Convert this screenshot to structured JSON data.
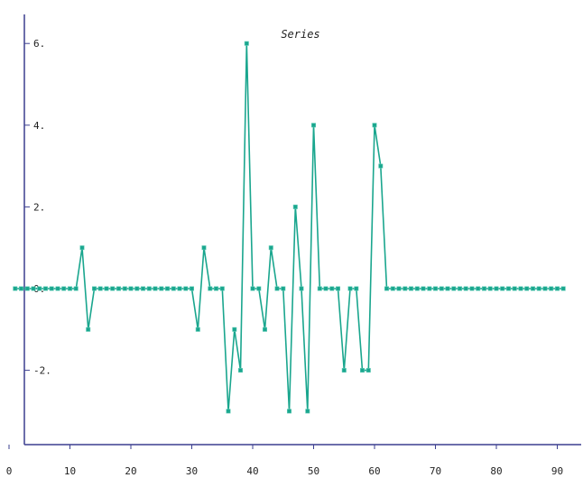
{
  "chart_data": {
    "type": "line",
    "title": "Series",
    "xlabel": "",
    "ylabel": "",
    "xlim": [
      0,
      92
    ],
    "ylim": [
      -3.8,
      6.8
    ],
    "x_ticks": [
      0,
      10,
      20,
      30,
      40,
      50,
      60,
      70,
      80,
      90
    ],
    "x_tick_labels": [
      "0",
      "10",
      "20",
      "30",
      "40",
      "50",
      "60",
      "70",
      "80",
      "90"
    ],
    "y_ticks": [
      6,
      4,
      2,
      0,
      -2
    ],
    "y_tick_labels": [
      "6.",
      "4.",
      "2.",
      "0.",
      "-2."
    ],
    "grid": false,
    "legend": "none",
    "colors": {
      "series": "#1aa68e",
      "axis": "#3b3f8f",
      "text": "#1f1f1f"
    },
    "series": [
      {
        "x": [
          1,
          2,
          3,
          4,
          5,
          6,
          7,
          8,
          9,
          10,
          11,
          12,
          13,
          14,
          15,
          16,
          17,
          18,
          19,
          20,
          21,
          22,
          23,
          24,
          25,
          26,
          27,
          28,
          29,
          30,
          31,
          32,
          33,
          34,
          35,
          36,
          37,
          38,
          39,
          40,
          41,
          42,
          43,
          44,
          45,
          46,
          47,
          48,
          49,
          50,
          51,
          52,
          53,
          54,
          55,
          56,
          57,
          58,
          59,
          60,
          61,
          62,
          63,
          64,
          65,
          66,
          67,
          68,
          69,
          70,
          71,
          72,
          73,
          74,
          75,
          76,
          77,
          78,
          79,
          80,
          81,
          82,
          83,
          84,
          85,
          86,
          87,
          88,
          89,
          90,
          91
        ],
        "values": [
          0,
          0,
          0,
          0,
          0,
          0,
          0,
          0,
          0,
          0,
          0,
          1,
          -1,
          0,
          0,
          0,
          0,
          0,
          0,
          0,
          0,
          0,
          0,
          0,
          0,
          0,
          0,
          0,
          0,
          0,
          -1,
          1,
          0,
          0,
          0,
          -3,
          -1,
          -2,
          6,
          0,
          0,
          -1,
          1,
          0,
          0,
          -3,
          2,
          0,
          -3,
          4,
          0,
          0,
          0,
          0,
          -2,
          0,
          0,
          -2,
          -2,
          4,
          3,
          0,
          0,
          0,
          0,
          0,
          0,
          0,
          0,
          0,
          0,
          0,
          0,
          0,
          0,
          0,
          0,
          0,
          0,
          0,
          0,
          0,
          0,
          0,
          0,
          0,
          0,
          0,
          0,
          0,
          0
        ]
      }
    ]
  }
}
